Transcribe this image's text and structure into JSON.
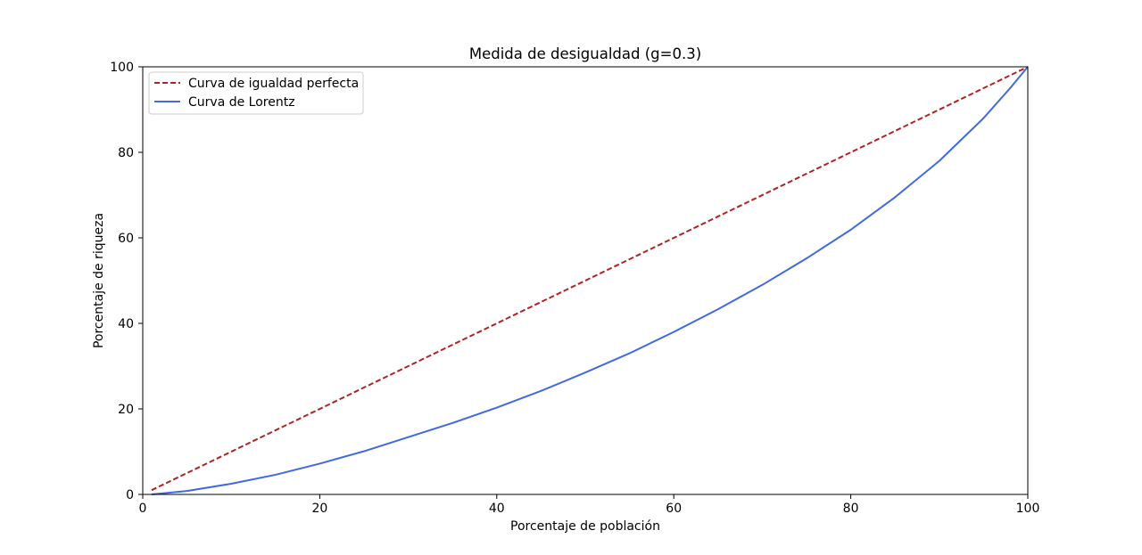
{
  "chart_data": {
    "type": "line",
    "title": "Medida de desigualdad (g=0.3)",
    "xlabel": "Porcentaje de población",
    "ylabel": "Porcentaje de riqueza",
    "xlim": [
      0,
      100
    ],
    "ylim": [
      0,
      100
    ],
    "xticks": [
      "0",
      "20",
      "40",
      "60",
      "80",
      "100"
    ],
    "yticks": [
      "0",
      "20",
      "40",
      "60",
      "80",
      "100"
    ],
    "grid": false,
    "legend_position": "upper-left",
    "series": [
      {
        "name": "Curva de igualdad perfecta",
        "style": "dashed",
        "color": "#b22222",
        "x": [
          1,
          100
        ],
        "y": [
          1,
          100
        ]
      },
      {
        "name": "Curva de Lorentz",
        "style": "solid",
        "color": "#4169e1",
        "x": [
          1,
          5,
          10,
          15,
          20,
          25,
          30,
          35,
          40,
          45,
          50,
          55,
          60,
          65,
          70,
          75,
          80,
          85,
          90,
          95,
          98,
          100
        ],
        "y": [
          0,
          0.8,
          2.5,
          4.6,
          7.2,
          10.1,
          13.4,
          16.7,
          20.3,
          24.2,
          28.5,
          33.0,
          38.0,
          43.3,
          49.0,
          55.2,
          61.9,
          69.5,
          78.0,
          88.0,
          95.0,
          100
        ]
      }
    ]
  }
}
